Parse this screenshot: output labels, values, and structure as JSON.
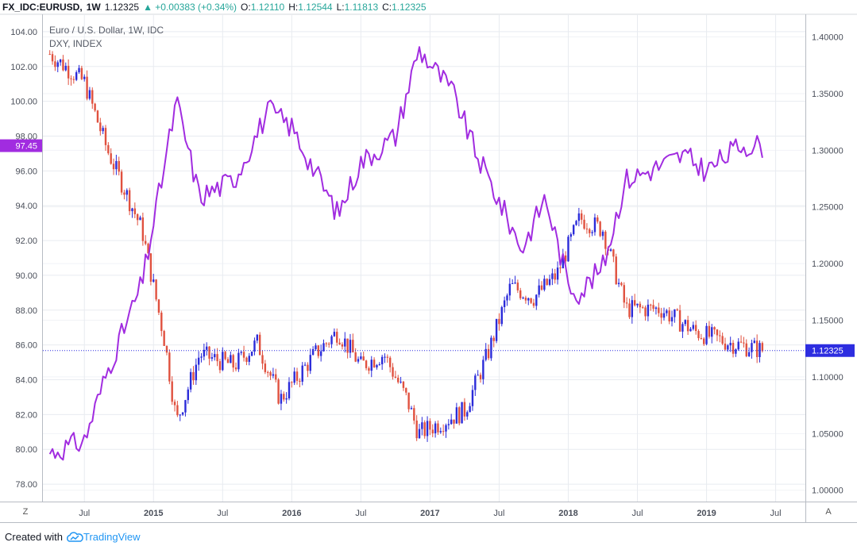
{
  "header": {
    "symbol": "FX_IDC:EURUSD,",
    "interval": "1W",
    "last": "1.12325",
    "change": "▲ +0.00383 (+0.34%)",
    "open_label": "O:",
    "open": "1.12110",
    "high_label": "H:",
    "high": "1.12544",
    "low_label": "L:",
    "low": "1.11813",
    "close_label": "C:",
    "close": "1.12325"
  },
  "legend": {
    "main": "Euro / U.S. Dollar, 1W, IDC",
    "compare": "DXY, INDEX"
  },
  "axis_buttons": {
    "left": "Z",
    "right": "A"
  },
  "footer": {
    "created_with": "Created with",
    "brand": "TradingView"
  },
  "colors": {
    "up": "#2b2bd9",
    "down": "#e0513f",
    "dxy": "#a12ce0",
    "price_tag": "#2d2de0",
    "dxy_tag": "#a12ce0",
    "grid": "#e8ebf0",
    "axis_text": "#4a4f5a"
  },
  "chart_data": {
    "type": "line",
    "x_tick_labels": [
      "Jul",
      "2015",
      "Jul",
      "2016",
      "Jul",
      "2017",
      "Jul",
      "2018",
      "Jul",
      "2019",
      "Jul"
    ],
    "y_left_ticks": [
      "78.00",
      "80.00",
      "82.00",
      "84.00",
      "86.00",
      "88.00",
      "90.00",
      "92.00",
      "94.00",
      "96.00",
      "98.00",
      "100.00",
      "102.00",
      "104.00"
    ],
    "y_right_ticks": [
      "1.00000",
      "1.05000",
      "1.10000",
      "1.15000",
      "1.20000",
      "1.25000",
      "1.30000",
      "1.35000",
      "1.40000"
    ],
    "y_left_range": [
      77,
      105
    ],
    "y_right_range": [
      0.99,
      1.42
    ],
    "current_price_label": "1.12325",
    "current_dxy_label": "97.45",
    "series": [
      {
        "name": "Euro / U.S. Dollar",
        "kind": "candlestick-weekly",
        "axis": "right",
        "x": [
          "2014-04",
          "2014-07",
          "2014-09",
          "2014-12",
          "2015-02",
          "2015-03",
          "2015-05",
          "2015-08",
          "2015-10",
          "2015-12",
          "2016-03",
          "2016-05",
          "2016-07",
          "2016-09",
          "2016-11",
          "2016-12",
          "2017-02",
          "2017-04",
          "2017-06",
          "2017-08",
          "2017-10",
          "2017-12",
          "2018-02",
          "2018-04",
          "2018-06",
          "2018-09",
          "2018-12",
          "2019-03",
          "2019-06"
        ],
        "y": [
          1.385,
          1.36,
          1.3,
          1.23,
          1.13,
          1.06,
          1.12,
          1.11,
          1.13,
          1.08,
          1.12,
          1.14,
          1.11,
          1.12,
          1.08,
          1.05,
          1.06,
          1.07,
          1.12,
          1.18,
          1.17,
          1.19,
          1.24,
          1.23,
          1.16,
          1.16,
          1.14,
          1.13,
          1.12325
        ]
      },
      {
        "name": "DXY",
        "axis": "left",
        "x": [
          "2014-04",
          "2014-07",
          "2014-09",
          "2014-12",
          "2015-03",
          "2015-05",
          "2015-08",
          "2015-11",
          "2016-01",
          "2016-05",
          "2016-07",
          "2016-10",
          "2016-12",
          "2017-03",
          "2017-05",
          "2017-09",
          "2017-11",
          "2018-01",
          "2018-02",
          "2018-04",
          "2018-06",
          "2018-08",
          "2018-11",
          "2019-01",
          "2019-04",
          "2019-06"
        ],
        "y": [
          79.8,
          80.5,
          84.5,
          89.5,
          100,
          94.5,
          95.5,
          99.5,
          98.5,
          93.5,
          96.5,
          98.0,
          103,
          100.5,
          97.0,
          91.5,
          94.5,
          89.5,
          89.0,
          90.5,
          95.5,
          96.0,
          96.9,
          96.0,
          97.5,
          97.45
        ]
      }
    ]
  }
}
